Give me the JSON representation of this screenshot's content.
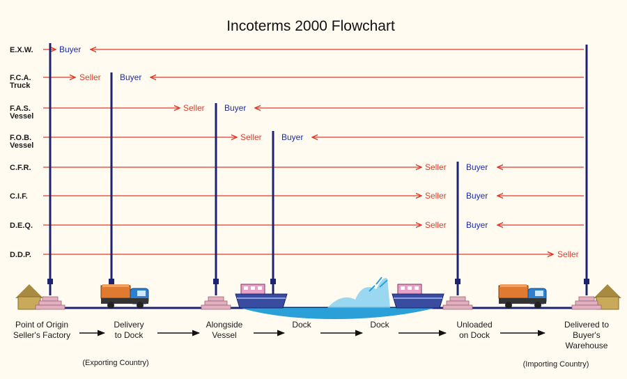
{
  "title": "Incoterms 2000 Flowchart",
  "colors": {
    "red_arrow": "#e23a2a",
    "navy_pole": "#1c2370",
    "buyer_text": "#1c2aa8",
    "seller_text": "#e23a2a",
    "water": "#2a9fd8",
    "house": "#c8aa5a",
    "pallet": "#e0b0c0",
    "truck_cab": "#2e7fd0",
    "truck_cargo": "#e07a30",
    "ship_hull": "#3a4ca0",
    "ship_cabin": "#e8a0c8"
  },
  "terms": [
    {
      "code": "E.X.W.",
      "sub": "",
      "seller": "",
      "buyer": "Buyer"
    },
    {
      "code": "F.C.A.",
      "sub": "Truck",
      "seller": "Seller",
      "buyer": "Buyer"
    },
    {
      "code": "F.A.S.",
      "sub": "Vessel",
      "seller": "Seller",
      "buyer": "Buyer"
    },
    {
      "code": "F.O.B.",
      "sub": "Vessel",
      "seller": "Seller",
      "buyer": "Buyer"
    },
    {
      "code": "C.F.R.",
      "sub": "",
      "seller": "Seller",
      "buyer": "Buyer"
    },
    {
      "code": "C.I.F.",
      "sub": "",
      "seller": "Seller",
      "buyer": "Buyer"
    },
    {
      "code": "D.E.Q.",
      "sub": "",
      "seller": "Seller",
      "buyer": "Buyer"
    },
    {
      "code": "D.D.P.",
      "sub": "",
      "seller": "Seller",
      "buyer": ""
    }
  ],
  "stages": [
    {
      "line1": "Point of Origin",
      "line2": "Seller's Factory",
      "line3": ""
    },
    {
      "line1": "Delivery",
      "line2": "to Dock",
      "line3": ""
    },
    {
      "line1": "Alongside",
      "line2": "Vessel",
      "line3": ""
    },
    {
      "line1": "Dock",
      "line2": "",
      "line3": ""
    },
    {
      "line1": "Dock",
      "line2": "",
      "line3": ""
    },
    {
      "line1": "Unloaded",
      "line2": "on Dock",
      "line3": ""
    },
    {
      "line1": "Delivered to",
      "line2": "Buyer's",
      "line3": "Warehouse"
    }
  ],
  "countries": {
    "exporting": "(Exporting Country)",
    "importing": "(Importing Country)"
  }
}
